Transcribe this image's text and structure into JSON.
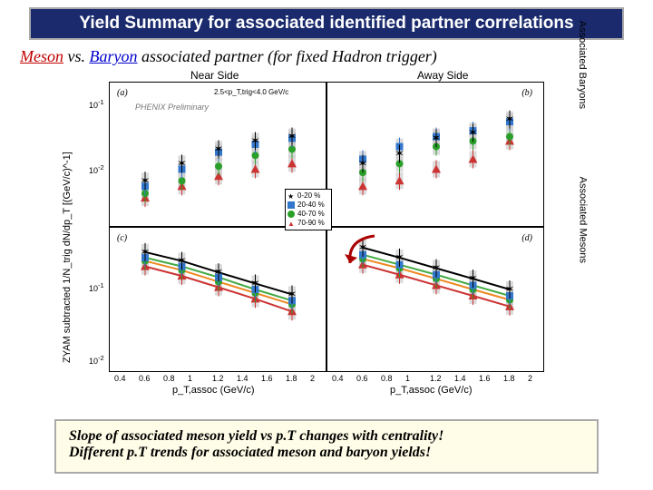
{
  "title": "Yield Summary for associated identified partner correlations",
  "subtitle": {
    "meson": "Meson",
    "vs": " vs. ",
    "baryon": "Baryon",
    "rest": " associated partner (for fixed Hadron trigger)"
  },
  "chart": {
    "panels": {
      "a": {
        "letter": "(a)",
        "title": "Near Side",
        "side_label": "Associated Baryons"
      },
      "b": {
        "letter": "(b)",
        "title": "Away Side"
      },
      "c": {
        "letter": "(c)",
        "side_label": "Associated Mesons"
      },
      "d": {
        "letter": "(d)"
      }
    },
    "preliminary": "PHENIX Preliminary",
    "trigger_range": "2.5<p_T,trig<4.0 GeV/c",
    "ylabel": "ZYAM subtracted 1/N_trig dN/dp_T  [(GeV/c)^-1]",
    "xlabel": "p_T,assoc  (GeV/c)",
    "x_ticks": [
      "0.4",
      "0.6",
      "0.8",
      "1",
      "1.2",
      "1.4",
      "1.6",
      "1.8",
      "2"
    ],
    "y_ticks_top": [
      "10^-1",
      "10^-2"
    ],
    "y_ticks_bot": [
      "10^-1",
      "10^-2"
    ],
    "legend": [
      {
        "label": "0-20 %",
        "color": "#000000",
        "shape": "star"
      },
      {
        "label": "20-40 %",
        "color": "#3377cc",
        "shape": "square"
      },
      {
        "label": "40-70 %",
        "color": "#2aa02a",
        "shape": "circle"
      },
      {
        "label": "70-90 %",
        "color": "#cc3333",
        "shape": "triangle"
      }
    ],
    "colors": {
      "star": "#000000",
      "square": "#3377cc",
      "circle": "#2aa02a",
      "triangle": "#cc3333",
      "errbar": "#cccccc",
      "frame": "#000000",
      "grid": "#e0e0e0",
      "line1": "#cc3333",
      "line2": "#ee8822",
      "line3": "#44aa44",
      "line4": "#000000"
    },
    "panel_a_data": {
      "x": [
        0.6,
        0.9,
        1.2,
        1.5,
        1.8
      ],
      "series": {
        "star": [
          0.005,
          0.01,
          0.018,
          0.025,
          0.03
        ],
        "square": [
          0.004,
          0.008,
          0.016,
          0.022,
          0.028
        ],
        "circle": [
          0.003,
          0.005,
          0.009,
          0.014,
          0.018
        ],
        "triangle": [
          0.0025,
          0.004,
          0.006,
          0.008,
          0.01
        ]
      },
      "ylim": [
        0.001,
        0.2
      ],
      "scale": "log"
    },
    "panel_b_data": {
      "x": [
        0.6,
        0.9,
        1.2,
        1.5,
        1.8
      ],
      "series": {
        "star": [
          0.01,
          0.015,
          0.028,
          0.035,
          0.06
        ],
        "square": [
          0.012,
          0.02,
          0.03,
          0.038,
          0.055
        ],
        "circle": [
          0.007,
          0.01,
          0.02,
          0.025,
          0.03
        ],
        "triangle": [
          0.004,
          0.005,
          0.008,
          0.012,
          0.025
        ]
      },
      "ylim": [
        0.001,
        0.2
      ],
      "scale": "log"
    },
    "panel_c_data": {
      "x": [
        0.6,
        0.9,
        1.2,
        1.5,
        1.8
      ],
      "series": {
        "star": [
          0.5,
          0.35,
          0.22,
          0.14,
          0.09
        ],
        "square": [
          0.4,
          0.28,
          0.18,
          0.11,
          0.07
        ],
        "circle": [
          0.35,
          0.24,
          0.15,
          0.095,
          0.06
        ],
        "triangle": [
          0.28,
          0.19,
          0.12,
          0.075,
          0.045
        ]
      },
      "ylim": [
        0.005,
        1.0
      ],
      "scale": "log",
      "fit_lines": true
    },
    "panel_d_data": {
      "x": [
        0.6,
        0.9,
        1.2,
        1.5,
        1.8
      ],
      "series": {
        "star": [
          0.6,
          0.4,
          0.26,
          0.17,
          0.11
        ],
        "square": [
          0.45,
          0.3,
          0.2,
          0.13,
          0.085
        ],
        "circle": [
          0.38,
          0.26,
          0.17,
          0.11,
          0.072
        ],
        "triangle": [
          0.3,
          0.2,
          0.13,
          0.085,
          0.055
        ]
      },
      "ylim": [
        0.005,
        1.0
      ],
      "scale": "log",
      "fit_lines": true
    }
  },
  "footer": {
    "line1": "Slope of associated meson yield vs p.T changes with centrality!",
    "line2": "Different p.T trends for associated meson and baryon yields!"
  }
}
